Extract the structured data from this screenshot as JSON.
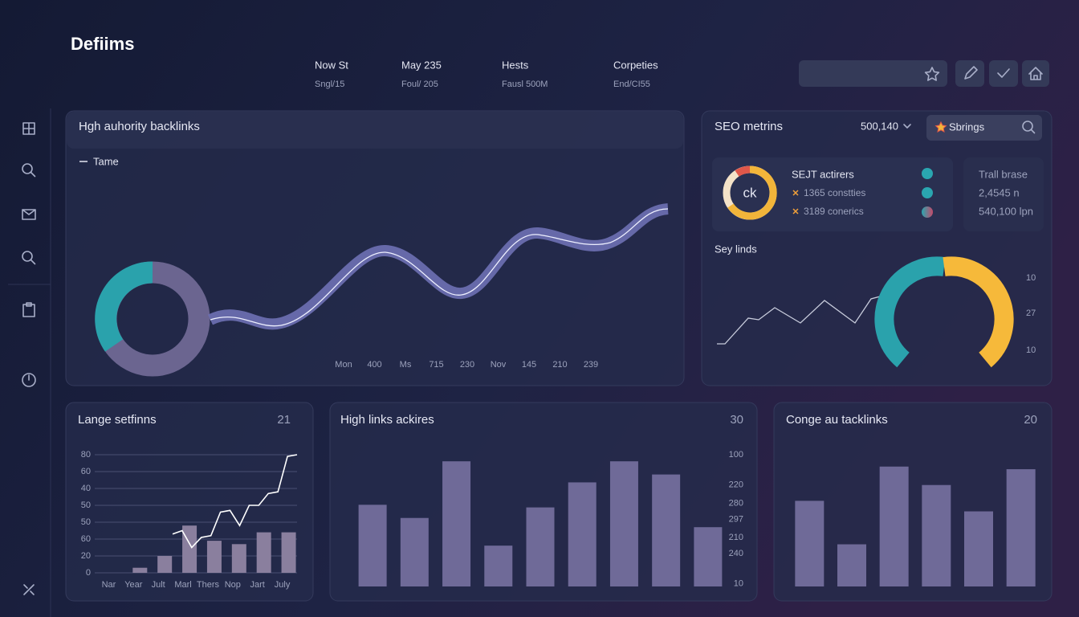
{
  "header": {
    "brand": "Defiims",
    "stats": [
      {
        "label": "Now St",
        "sub": "Sngl/15"
      },
      {
        "label": "May 235",
        "sub": "Foul/ 205"
      },
      {
        "label": "Hests",
        "sub": "Fausl 500M"
      },
      {
        "label": "Corpeties",
        "sub": "End/CI55"
      }
    ]
  },
  "backlinks_panel": {
    "title": "Hgh auhority backlinks",
    "legend": "Tame",
    "x_labels": [
      "Mon",
      "400",
      "Ms",
      "715",
      "230",
      "Nov",
      "145",
      "210",
      "239"
    ]
  },
  "seo_panel": {
    "title": "SEO metrins",
    "dropdown": "500,140",
    "search": "Sbrings",
    "card": {
      "badge": "ck",
      "heading": "SEJT actirers",
      "items": [
        "1365 constties",
        "3189 conerics"
      ],
      "side_heading": "Trall brase",
      "side_values": [
        "2,4545 n",
        "540,100 lpn"
      ]
    },
    "subtitle": "Sey linds",
    "axis_labels": [
      10,
      27,
      10
    ]
  },
  "chart_data": [
    {
      "type": "bar",
      "title": "Lange setfinns",
      "badge": 21,
      "categories": [
        "Nar",
        "Year",
        "Jult",
        "Marl",
        "Thers",
        "Nop",
        "Jart",
        "July"
      ],
      "values": [
        null,
        0.3,
        1,
        2.8,
        1.9,
        1.7,
        2.4,
        2.4
      ],
      "line_values": [
        2.3,
        2.5,
        1.5,
        2.1,
        2.2,
        3.6,
        3.7,
        2.8,
        4.0,
        4.0,
        4.7,
        4.8,
        6.9,
        7.0
      ],
      "color": "#8a7f9e",
      "line_color": "#ffffff",
      "ylim": [
        0,
        7
      ],
      "yticks": [
        0,
        {
          "value": 1,
          "label": "20"
        },
        {
          "value": 2,
          "label": "60"
        },
        {
          "value": 3,
          "label": "50"
        },
        {
          "value": 4,
          "label": "50"
        },
        {
          "value": 5,
          "label": "40"
        },
        {
          "value": 6,
          "label": "60"
        },
        {
          "value": 7,
          "label": "80"
        }
      ],
      "grid": true
    },
    {
      "type": "bar",
      "title": "High links ackires",
      "badge": 30,
      "values": [
        62,
        52,
        95,
        31,
        60,
        79,
        95,
        85,
        45
      ],
      "color": "#6f6a98",
      "ylim": [
        0,
        100
      ],
      "yticks": [
        {
          "value": 2,
          "label": "10"
        },
        {
          "value": 25,
          "label": "240"
        },
        {
          "value": 37,
          "label": "210"
        },
        {
          "value": 51,
          "label": "297"
        },
        {
          "value": 63,
          "label": "280"
        },
        {
          "value": 77,
          "label": "220"
        },
        100
      ],
      "grid": false
    },
    {
      "type": "bar",
      "title": "Conge au tacklinks",
      "badge": 20,
      "values": [
        65,
        32,
        91,
        77,
        57,
        89
      ],
      "color": "#6f6a98",
      "ylim": [
        0,
        100
      ],
      "grid": false
    }
  ]
}
